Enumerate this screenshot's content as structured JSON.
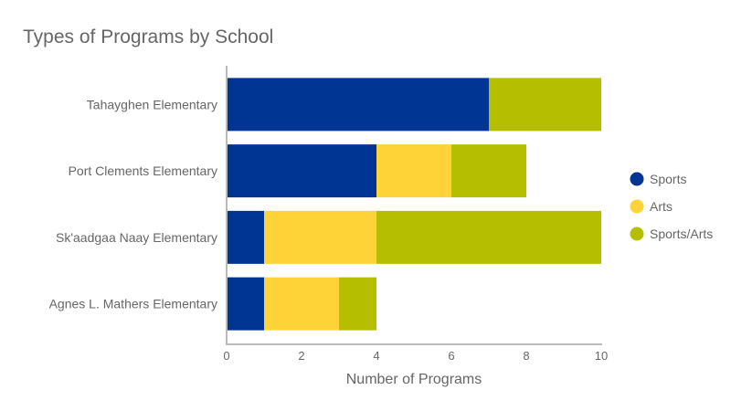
{
  "chart_data": {
    "type": "bar",
    "orientation": "horizontal",
    "stacked": true,
    "title": "Types of Programs by School",
    "xlabel": "Number of Programs",
    "ylabel": "",
    "xlim": [
      0,
      10
    ],
    "xticks": [
      "0",
      "2",
      "4",
      "6",
      "8",
      "10"
    ],
    "grid": false,
    "legend_position": "right",
    "categories": [
      "Tahayghen Elementary",
      "Port Clements Elementary",
      "Sk'aadgaa Naay Elementary",
      "Agnes L. Mathers Elementary"
    ],
    "series": [
      {
        "name": "Sports",
        "color": "#003594",
        "values": [
          7,
          4,
          1,
          1
        ]
      },
      {
        "name": "Arts",
        "color": "#fdd337",
        "values": [
          0,
          2,
          3,
          2
        ]
      },
      {
        "name": "Sports/Arts",
        "color": "#b5be00",
        "values": [
          3,
          2,
          6,
          1
        ]
      }
    ]
  }
}
